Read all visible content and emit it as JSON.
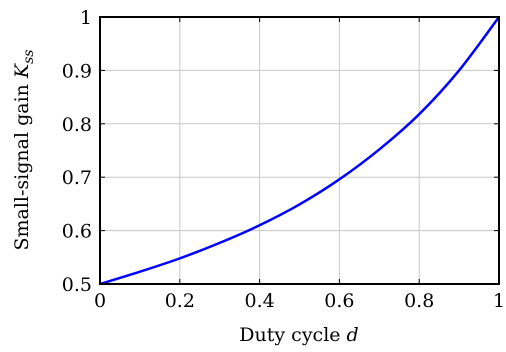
{
  "chart_data": {
    "type": "line",
    "xlabel": "Duty cycle",
    "xlabel_symbol": "d",
    "ylabel": "Small-signal gain",
    "ylabel_symbol": "K",
    "ylabel_symbol_sub": "ss",
    "xlim": [
      0,
      1
    ],
    "ylim": [
      0.5,
      1
    ],
    "x_ticks": [
      0,
      0.2,
      0.4,
      0.6,
      0.8,
      1
    ],
    "y_ticks": [
      0.5,
      0.6,
      0.7,
      0.8,
      0.9,
      1
    ],
    "x_tick_labels": [
      "0",
      "0.2",
      "0.4",
      "0.6",
      "0.8",
      "1"
    ],
    "y_tick_labels": [
      "0.5",
      "0.6",
      "0.7",
      "0.8",
      "0.9",
      "1"
    ],
    "grid": true,
    "series": [
      {
        "color": "#0000ff",
        "x": [
          0,
          0.1,
          0.2,
          0.3,
          0.4,
          0.5,
          0.6,
          0.7,
          0.8,
          0.9,
          1
        ],
        "y": [
          0.5,
          0.523,
          0.548,
          0.577,
          0.61,
          0.649,
          0.696,
          0.752,
          0.818,
          0.9,
          1.0
        ]
      }
    ]
  }
}
